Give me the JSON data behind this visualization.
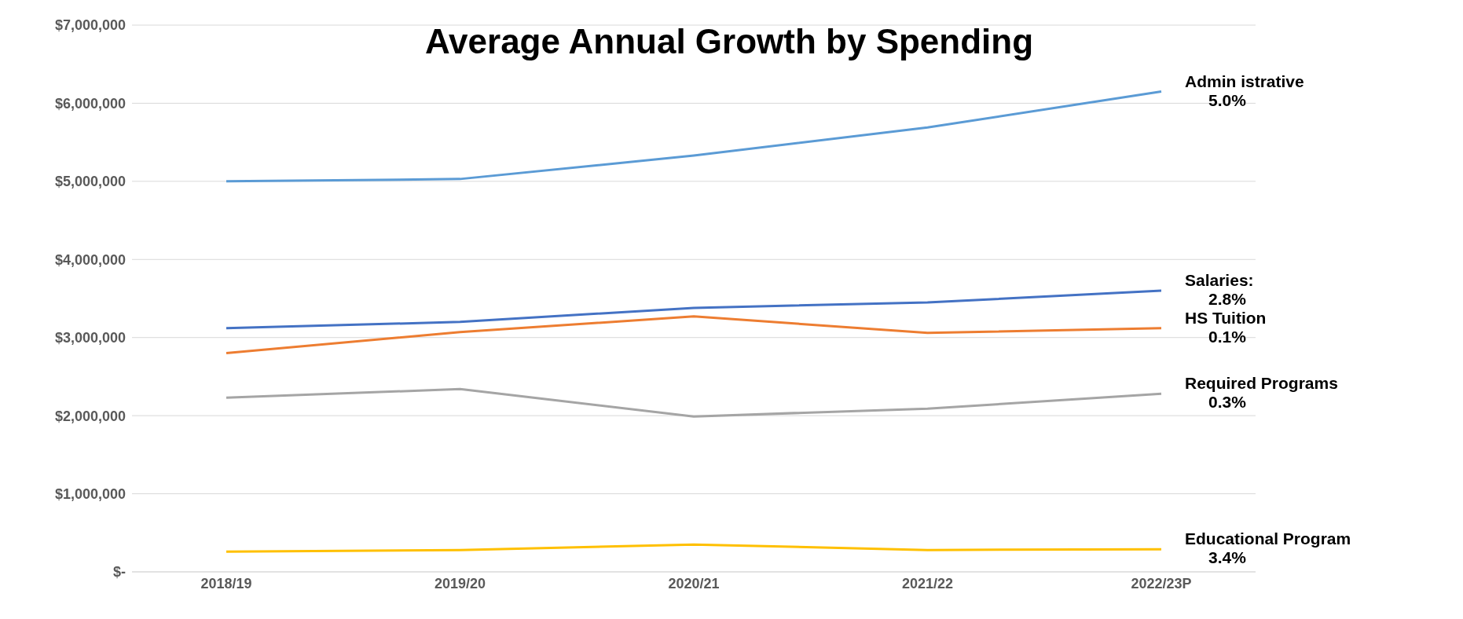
{
  "chart_data": {
    "type": "line",
    "title": "Average Annual Growth by Spending",
    "categories": [
      "2018/19",
      "2019/20",
      "2020/21",
      "2021/22",
      "2022/23P"
    ],
    "series": [
      {
        "name": "Admin istrative",
        "color": "#5b9bd5",
        "values": [
          5000000,
          5030000,
          5330000,
          5690000,
          6150000
        ]
      },
      {
        "name": "Salaries:",
        "color": "#4472c4",
        "values": [
          3120000,
          3200000,
          3380000,
          3450000,
          3600000
        ]
      },
      {
        "name": "HS Tuition",
        "color": "#ed7d31",
        "values": [
          2800000,
          3070000,
          3270000,
          3060000,
          3120000
        ]
      },
      {
        "name": "Required Programs",
        "color": "#a5a5a5",
        "values": [
          2230000,
          2340000,
          1990000,
          2090000,
          2280000
        ]
      },
      {
        "name": "Educational Program",
        "color": "#ffc000",
        "values": [
          260000,
          280000,
          350000,
          280000,
          290000
        ]
      }
    ],
    "annotations": [
      "5.0%",
      "2.8%",
      "0.1%",
      "0.3%",
      "3.4%"
    ],
    "ylim": [
      0,
      7000000
    ],
    "yticks": [
      {
        "value": 0,
        "label": "$-"
      },
      {
        "value": 1000000,
        "label": "$1,000,000"
      },
      {
        "value": 2000000,
        "label": "$2,000,000"
      },
      {
        "value": 3000000,
        "label": "$3,000,000"
      },
      {
        "value": 4000000,
        "label": "$4,000,000"
      },
      {
        "value": 5000000,
        "label": "$5,000,000"
      },
      {
        "value": 6000000,
        "label": "$6,000,000"
      },
      {
        "value": 7000000,
        "label": "$7,000,000"
      }
    ],
    "grid": "y",
    "legend": false,
    "marker": "none",
    "line_style": "solid"
  }
}
